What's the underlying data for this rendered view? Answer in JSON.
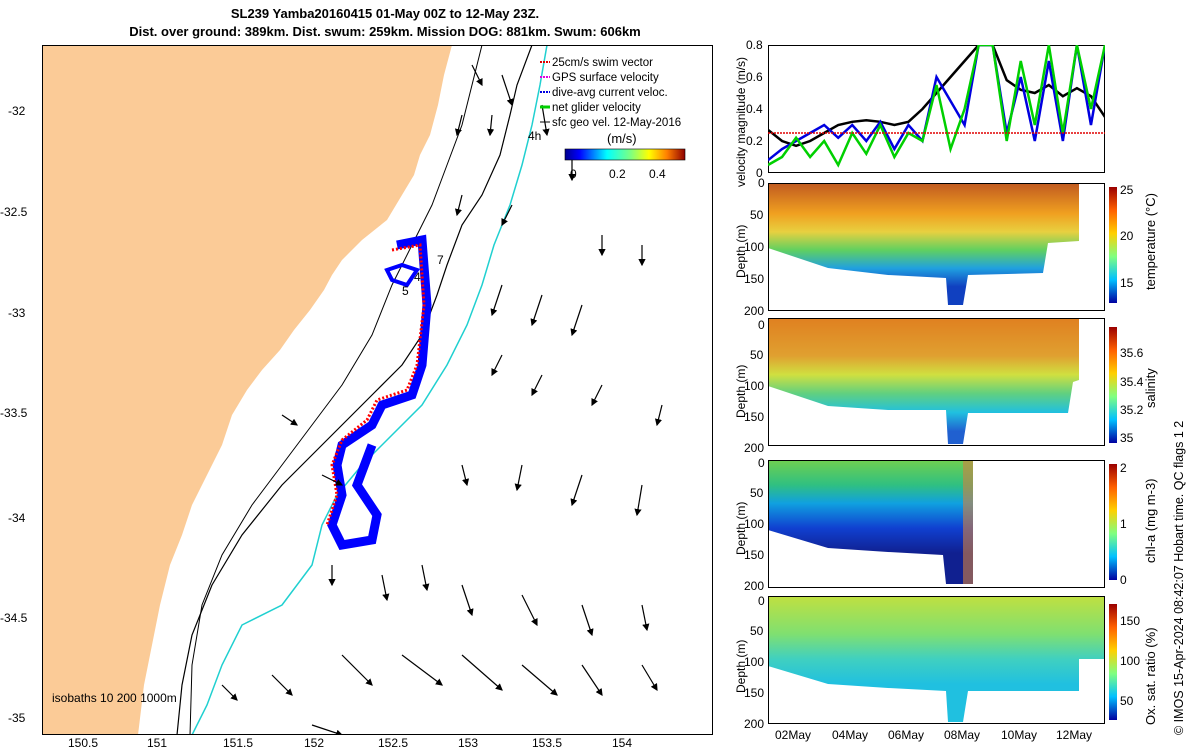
{
  "title": {
    "line1": "SL239 Yamba20160415 01-May 00Z to 12-May 23Z.",
    "line2": "Dist. over ground: 389km. Dist. swum: 259km. Mission DOG: 881km. Swum: 606km"
  },
  "map": {
    "x_ticks": [
      "150.5",
      "151",
      "151.5",
      "152",
      "152.5",
      "153",
      "153.5",
      "154"
    ],
    "y_ticks": [
      "-32",
      "-32.5",
      "-33",
      "-33.5",
      "-34",
      "-34.5",
      "-35"
    ],
    "legend": [
      {
        "label": "25cm/s swim vector",
        "color": "#e00000"
      },
      {
        "label": "GPS surface velocity",
        "color": "#e000e0"
      },
      {
        "label": "dive-avg current veloc.",
        "color": "#0000e0"
      },
      {
        "label": "net glider velocity",
        "color": "#00d000"
      },
      {
        "label": "sfc geo vel. 12-May-2016",
        "color": "#000000"
      }
    ],
    "colorbar_label": "(m/s)",
    "colorbar_ticks": [
      "0",
      "0.2",
      "0.4"
    ],
    "isobaths_label": "isobaths 10   200  1000m",
    "track_labels": [
      "4h",
      "7",
      "4",
      "5"
    ],
    "land_color": "#fbcb97",
    "ocean_color": "#ffffff"
  },
  "chart_data": [
    {
      "type": "line",
      "ylabel": "velocity magnitude (m/s)",
      "x_ticks": [
        "02May",
        "04May",
        "06May",
        "08May",
        "10May",
        "12May"
      ],
      "y_ticks": [
        "0",
        "0.2",
        "0.4",
        "0.6",
        "0.8"
      ],
      "ylim": [
        0,
        0.8
      ],
      "xlim": [
        1,
        13
      ],
      "series": [
        {
          "color": "#000000",
          "x": [
            1,
            1.5,
            2,
            2.5,
            3,
            3.5,
            4,
            4.5,
            5,
            5.5,
            6,
            6.5,
            7,
            7.5,
            8,
            8.5,
            9,
            9.5,
            10,
            10.5,
            11,
            11.5,
            12,
            12.5,
            13
          ],
          "y": [
            0.27,
            0.2,
            0.17,
            0.2,
            0.25,
            0.3,
            0.32,
            0.33,
            0.32,
            0.3,
            0.32,
            0.4,
            0.5,
            0.6,
            0.7,
            0.8,
            0.8,
            0.58,
            0.52,
            0.5,
            0.55,
            0.48,
            0.53,
            0.48,
            0.35
          ]
        },
        {
          "color": "#0000e0",
          "x": [
            1,
            1.5,
            2,
            2.5,
            3,
            3.5,
            4,
            4.5,
            5,
            5.5,
            6,
            6.5,
            7,
            7.5,
            8,
            8.5,
            9,
            9.5,
            10,
            10.5,
            11,
            11.5,
            12,
            12.5,
            13
          ],
          "y": [
            0.08,
            0.15,
            0.2,
            0.25,
            0.3,
            0.22,
            0.3,
            0.2,
            0.32,
            0.15,
            0.3,
            0.2,
            0.6,
            0.45,
            0.3,
            0.8,
            0.8,
            0.25,
            0.6,
            0.2,
            0.7,
            0.2,
            0.8,
            0.3,
            0.8
          ]
        },
        {
          "color": "#00d000",
          "x": [
            1,
            1.5,
            2,
            2.5,
            3,
            3.5,
            4,
            4.5,
            5,
            5.5,
            6,
            6.5,
            7,
            7.5,
            8,
            8.5,
            9,
            9.5,
            10,
            10.5,
            11,
            11.5,
            12,
            12.5,
            13
          ],
          "y": [
            0.05,
            0.1,
            0.22,
            0.1,
            0.2,
            0.05,
            0.25,
            0.12,
            0.3,
            0.1,
            0.25,
            0.2,
            0.55,
            0.15,
            0.4,
            0.8,
            0.8,
            0.2,
            0.7,
            0.3,
            0.8,
            0.25,
            0.8,
            0.4,
            0.8
          ]
        },
        {
          "color": "#e00000",
          "x": [
            1,
            13
          ],
          "y": [
            0.25,
            0.25
          ]
        }
      ]
    },
    {
      "type": "heatmap",
      "ylabel": "Depth (m)",
      "cbar_label": "temperature (°C)",
      "y_ticks": [
        "0",
        "50",
        "100",
        "150",
        "200"
      ],
      "cbar_ticks": [
        "25",
        "20",
        "15"
      ]
    },
    {
      "type": "heatmap",
      "ylabel": "Depth (m)",
      "cbar_label": "salinity",
      "y_ticks": [
        "0",
        "50",
        "100",
        "150",
        "200"
      ],
      "cbar_ticks": [
        "35.6",
        "35.4",
        "35.2",
        "35"
      ]
    },
    {
      "type": "heatmap",
      "ylabel": "Depth (m)",
      "cbar_label": "chl-a (mg m-3)",
      "y_ticks": [
        "0",
        "50",
        "100",
        "150",
        "200"
      ],
      "cbar_ticks": [
        "2",
        "1",
        "0"
      ]
    },
    {
      "type": "heatmap",
      "ylabel": "Depth (m)",
      "cbar_label": "Ox. sat. ratio (%)",
      "y_ticks": [
        "0",
        "50",
        "100",
        "150",
        "200"
      ],
      "cbar_ticks": [
        "150",
        "100",
        "50"
      ],
      "x_ticks": [
        "02May",
        "04May",
        "06May",
        "08May",
        "10May",
        "12May"
      ]
    }
  ],
  "footer": "© IMOS 15-Apr-2024 08:42:07 Hobart time. QC flags 1  2"
}
